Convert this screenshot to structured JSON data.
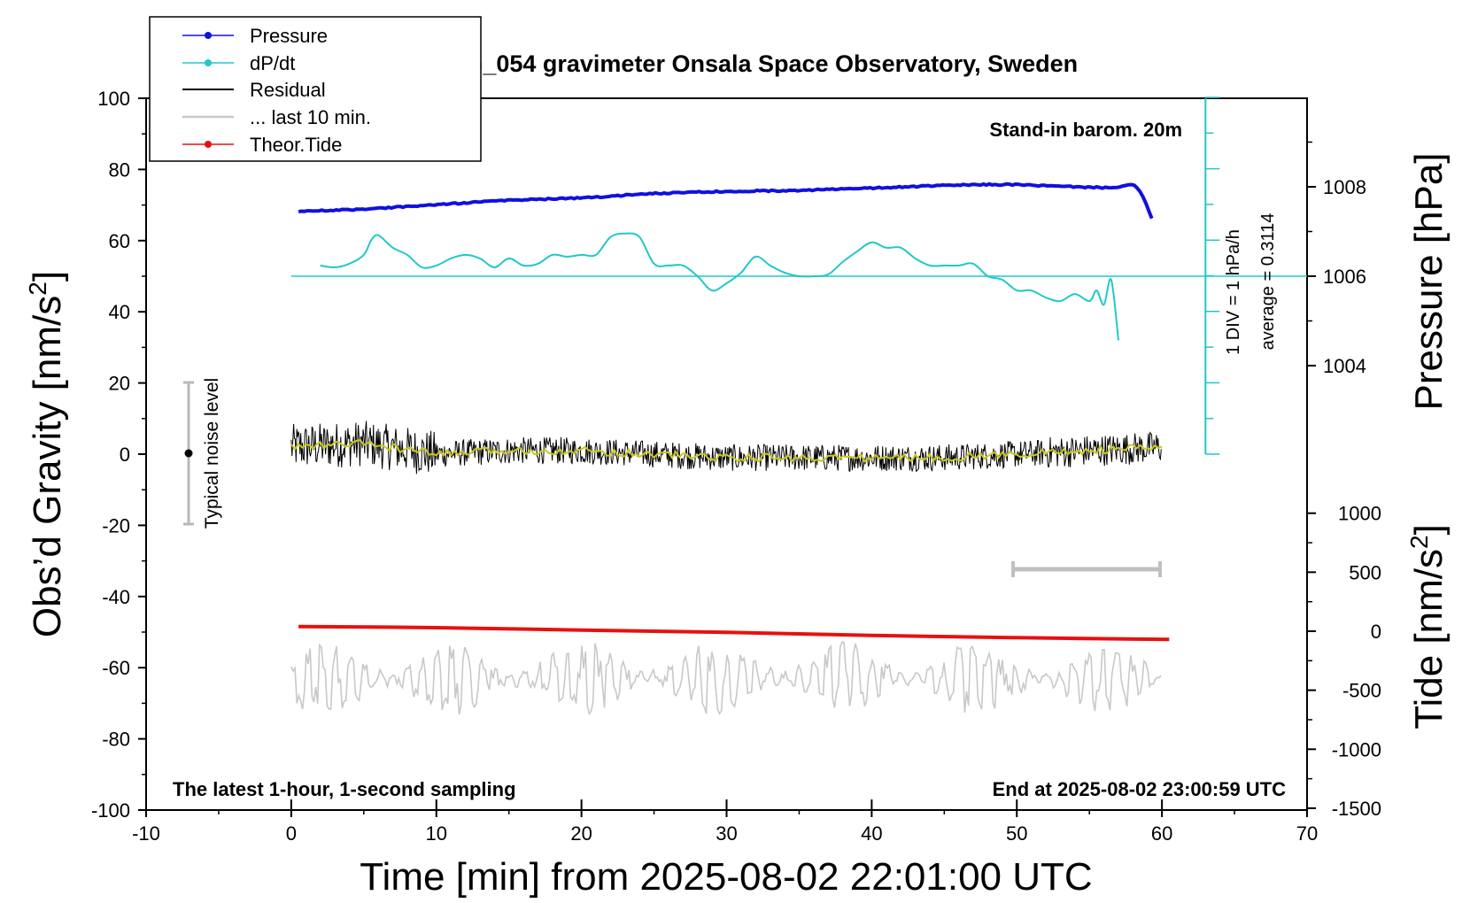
{
  "chart_data": {
    "type": "line",
    "title": "SCG_054 gravimeter Onsala Space Observatory, Sweden",
    "xlabel": "Time [min] from 2025-08-02 22:01:00 UTC",
    "ylabel_left": "Obs’d Gravity [nm/s",
    "ylabel_left_sup": "2",
    "ylabel_left_end": "]",
    "ylabel_right_pressure": "Pressure [hPa]",
    "ylabel_right_tide": "Tide [nm/s",
    "ylabel_right_tide_sup": "2",
    "ylabel_right_tide_end": "]",
    "xlim": [
      -10,
      70
    ],
    "ylim_left": [
      -100,
      100
    ],
    "x_ticks": [
      "-10",
      "0",
      "10",
      "20",
      "30",
      "40",
      "50",
      "60",
      "70"
    ],
    "y_ticks_left": [
      "100",
      "80",
      "60",
      "40",
      "20",
      "0",
      "-20",
      "-40",
      "-60",
      "-80",
      "-100"
    ],
    "pressure_ticks": [
      "1008",
      "1006",
      "1004"
    ],
    "tide_ticks": [
      "1000",
      "500",
      "0",
      "-500",
      "-1000",
      "-1500"
    ],
    "annotations": {
      "stand_in": "Stand-in barom. 20m",
      "div": "1 DIV = 1 hPa/h",
      "average": "average = 0.3114",
      "noise": "Typical noise level",
      "latest": "The latest 1-hour, 1-second sampling",
      "end": "End at 2025-08-02 23:00:59 UTC"
    },
    "legend": {
      "placement": "top-left",
      "entries": [
        "Pressure",
        "dP/dt",
        "Residual",
        "... last 10 min.",
        "Theor.Tide"
      ]
    },
    "colors": {
      "pressure": "#1010e0",
      "dpdt": "#20c8c8",
      "residual": "#000000",
      "last10": "#c8c8c8",
      "tide": "#e81010",
      "smooth": "#c8c820",
      "bracket": "#c0c0c0"
    },
    "series": [
      {
        "name": "Pressure",
        "axis": "pressure_hPa",
        "x": [
          0.5,
          5,
          10,
          15,
          20,
          25,
          30,
          35,
          40,
          45,
          48,
          50,
          52,
          54,
          56,
          57,
          58,
          58.5,
          59,
          59.5
        ],
        "y": [
          1007.45,
          1007.5,
          1007.6,
          1007.7,
          1007.75,
          1007.85,
          1007.9,
          1007.92,
          1007.97,
          1008.03,
          1008.05,
          1008.05,
          1008.02,
          1008.0,
          1007.98,
          1008.0,
          1008.05,
          1007.9,
          1007.55,
          1007.1
        ]
      },
      {
        "name": "dP/dt",
        "axis": "left",
        "x": [
          2,
          3,
          4,
          5,
          5.5,
          6,
          7,
          8,
          9,
          10,
          11,
          12,
          13,
          14,
          15,
          16,
          17,
          18,
          19,
          20,
          21,
          22,
          23,
          24,
          25,
          26,
          27,
          28,
          29,
          30,
          31,
          32,
          33,
          34,
          35,
          36,
          37,
          38,
          39,
          40,
          41,
          42,
          43,
          44,
          45,
          46,
          47,
          48,
          49,
          50,
          51,
          52,
          53,
          54,
          55,
          55.5,
          56,
          56.5,
          57
        ],
        "y": [
          53,
          52.5,
          53.5,
          56,
          60,
          61.5,
          58,
          56,
          52.5,
          53,
          55,
          56,
          55,
          52.5,
          55,
          53,
          53.5,
          56,
          55.5,
          56,
          56,
          61,
          62,
          61,
          53.5,
          53,
          53,
          50,
          46,
          48,
          51,
          55.5,
          53,
          51,
          50,
          50,
          50.5,
          54,
          57,
          59.5,
          58,
          58,
          55,
          53,
          53,
          53,
          53.5,
          50,
          49,
          46,
          46,
          44,
          43,
          45,
          43,
          46,
          42,
          49,
          32
        ]
      },
      {
        "name": "Residual",
        "axis": "left",
        "x": [
          0,
          5,
          10,
          15,
          20,
          25,
          30,
          35,
          40,
          45,
          50,
          55,
          60
        ],
        "y": [
          2,
          3,
          0,
          1,
          1,
          0,
          -1,
          -1,
          -1,
          -1,
          0,
          1,
          2
        ]
      },
      {
        "name": "... last 10 min.",
        "axis": "left",
        "x": [
          0,
          60
        ],
        "y": [
          -63,
          -63
        ]
      },
      {
        "name": "Theor.Tide",
        "axis": "tide_nm_s2",
        "x": [
          0.5,
          10,
          20,
          30,
          40,
          50,
          60.5
        ],
        "y": [
          40,
          30,
          10,
          -10,
          -35,
          -55,
          -70
        ]
      }
    ]
  }
}
